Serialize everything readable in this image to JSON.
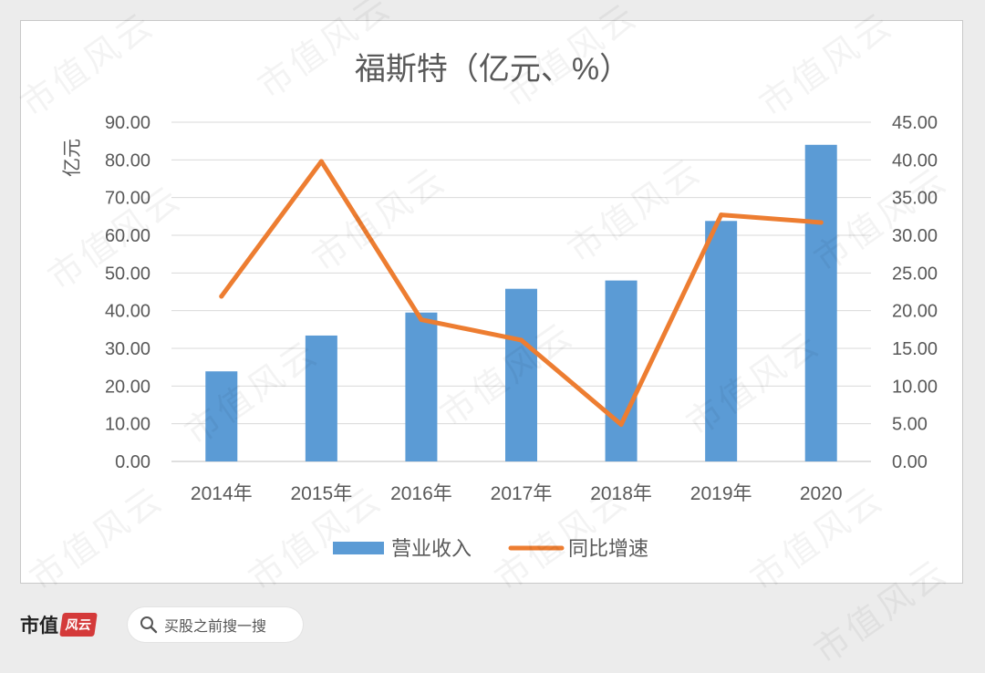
{
  "chart_data": {
    "type": "bar+line",
    "title": "福斯特（亿元、%）",
    "ylabel": "亿元",
    "categories": [
      "2014年",
      "2015年",
      "2016年",
      "2017年",
      "2018年",
      "2019年",
      "2020"
    ],
    "y_left": {
      "min": 0,
      "max": 90,
      "step": 10,
      "tick_labels": [
        "0.00",
        "10.00",
        "20.00",
        "30.00",
        "40.00",
        "50.00",
        "60.00",
        "70.00",
        "80.00",
        "90.00"
      ]
    },
    "y_right": {
      "min": 0,
      "max": 45,
      "step": 5,
      "tick_labels": [
        "0.00",
        "5.00",
        "10.00",
        "15.00",
        "20.00",
        "25.00",
        "30.00",
        "35.00",
        "40.00",
        "45.00"
      ]
    },
    "series": [
      {
        "name": "营业收入",
        "kind": "bar",
        "axis": "left",
        "color": "#5b9bd5",
        "values": [
          23.9,
          33.4,
          39.5,
          45.8,
          48.0,
          63.8,
          84.0
        ]
      },
      {
        "name": "同比增速",
        "kind": "line",
        "axis": "right",
        "color": "#ed7d31",
        "values": [
          21.9,
          39.8,
          18.8,
          16.1,
          4.9,
          32.7,
          31.7
        ]
      }
    ],
    "legend_position": "bottom",
    "grid": "horizontal"
  },
  "watermark_text": "市值风云",
  "footer": {
    "brand_name": "市值",
    "brand_stamp": "风云",
    "search_text": "买股之前搜一搜"
  }
}
